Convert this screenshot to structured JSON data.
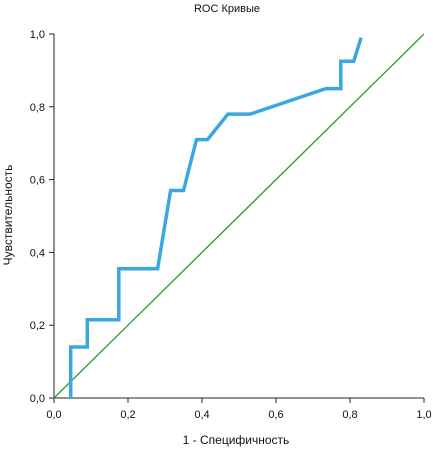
{
  "chart_data": {
    "type": "line",
    "title": "ROC Кривые",
    "xlabel": "1 - Специфичность",
    "ylabel": "Чувствительность",
    "xlim": [
      0,
      1
    ],
    "ylim": [
      0,
      1
    ],
    "x_ticks": [
      "0,0",
      "0,2",
      "0,4",
      "0,6",
      "0,8",
      "1,0"
    ],
    "y_ticks": [
      "0,0",
      "0,2",
      "0,4",
      "0,6",
      "0,8",
      "1,0"
    ],
    "grid": false,
    "series": [
      {
        "color": "#3aa8de",
        "points": [
          [
            0.045,
            0.0
          ],
          [
            0.045,
            0.14
          ],
          [
            0.09,
            0.14
          ],
          [
            0.09,
            0.215
          ],
          [
            0.175,
            0.215
          ],
          [
            0.175,
            0.355
          ],
          [
            0.28,
            0.355
          ],
          [
            0.315,
            0.57
          ],
          [
            0.35,
            0.57
          ],
          [
            0.385,
            0.71
          ],
          [
            0.415,
            0.71
          ],
          [
            0.47,
            0.78
          ],
          [
            0.53,
            0.78
          ],
          [
            0.735,
            0.85
          ],
          [
            0.775,
            0.85
          ],
          [
            0.775,
            0.925
          ],
          [
            0.81,
            0.925
          ],
          [
            0.83,
            0.99
          ]
        ]
      },
      {
        "color": "#3a9a3a",
        "points": [
          [
            0.0,
            0.0
          ],
          [
            1.0,
            1.0
          ]
        ]
      }
    ]
  }
}
